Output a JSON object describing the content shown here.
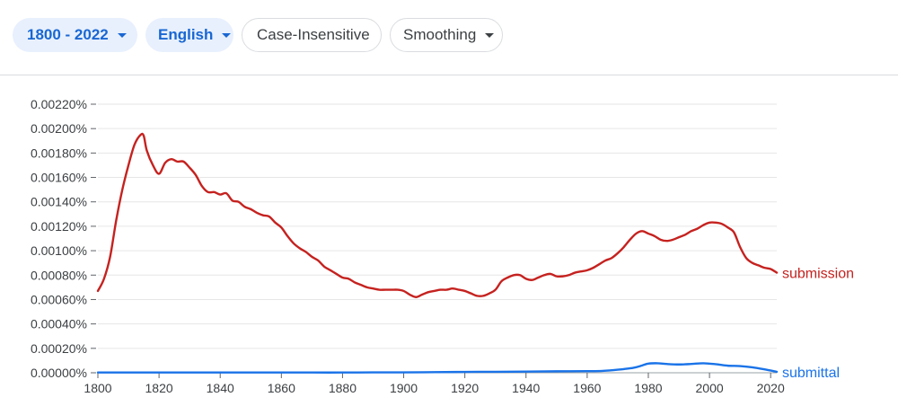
{
  "toolbar": {
    "year_range": "1800 - 2022",
    "corpus": "English",
    "case": "Case-Insensitive",
    "smoothing": "Smoothing"
  },
  "colors": {
    "accent": "#1967d2",
    "chip_active_bg": "#e8f0fe",
    "border": "#dadce0"
  },
  "chart_data": {
    "type": "line",
    "grid": "horizontal",
    "xlim": [
      1800,
      2022
    ],
    "ylim": [
      0,
      0.0022
    ],
    "x_ticks": [
      "1800",
      "1820",
      "1840",
      "1860",
      "1880",
      "1900",
      "1920",
      "1940",
      "1960",
      "1980",
      "2000",
      "2020"
    ],
    "y_ticks": [
      "0.00000%",
      "0.00020%",
      "0.00040%",
      "0.00060%",
      "0.00080%",
      "0.00100%",
      "0.00120%",
      "0.00140%",
      "0.00160%",
      "0.00180%",
      "0.00200%",
      "0.00220%"
    ],
    "series": [
      {
        "name": "submission",
        "color": "#c5221f",
        "x": [
          1800,
          1802,
          1804,
          1806,
          1808,
          1810,
          1812,
          1814,
          1815,
          1816,
          1818,
          1820,
          1822,
          1824,
          1826,
          1828,
          1830,
          1832,
          1834,
          1836,
          1838,
          1840,
          1842,
          1844,
          1846,
          1848,
          1850,
          1852,
          1854,
          1856,
          1858,
          1860,
          1862,
          1864,
          1866,
          1868,
          1870,
          1872,
          1874,
          1876,
          1878,
          1880,
          1882,
          1884,
          1886,
          1888,
          1890,
          1892,
          1894,
          1896,
          1898,
          1900,
          1902,
          1904,
          1906,
          1908,
          1910,
          1912,
          1914,
          1916,
          1918,
          1920,
          1922,
          1924,
          1926,
          1928,
          1930,
          1932,
          1934,
          1936,
          1938,
          1940,
          1942,
          1944,
          1946,
          1948,
          1950,
          1952,
          1954,
          1956,
          1958,
          1960,
          1962,
          1964,
          1966,
          1968,
          1970,
          1972,
          1974,
          1976,
          1978,
          1980,
          1982,
          1984,
          1986,
          1988,
          1990,
          1992,
          1994,
          1996,
          1998,
          2000,
          2002,
          2004,
          2006,
          2008,
          2010,
          2012,
          2014,
          2016,
          2018,
          2020,
          2022
        ],
        "values": [
          0.00067,
          0.00077,
          0.00095,
          0.00125,
          0.0015,
          0.0017,
          0.00187,
          0.00195,
          0.00194,
          0.00182,
          0.0017,
          0.00163,
          0.00172,
          0.00175,
          0.00173,
          0.00173,
          0.00168,
          0.00162,
          0.00153,
          0.00148,
          0.00148,
          0.00146,
          0.00147,
          0.00141,
          0.0014,
          0.00136,
          0.00134,
          0.00131,
          0.00129,
          0.00128,
          0.00123,
          0.00119,
          0.00112,
          0.00106,
          0.00102,
          0.00099,
          0.00095,
          0.00092,
          0.00087,
          0.00084,
          0.00081,
          0.00078,
          0.00077,
          0.00074,
          0.00072,
          0.0007,
          0.00069,
          0.00068,
          0.00068,
          0.00068,
          0.00068,
          0.00067,
          0.00064,
          0.00062,
          0.00064,
          0.00066,
          0.00067,
          0.00068,
          0.00068,
          0.00069,
          0.00068,
          0.00067,
          0.00065,
          0.00063,
          0.00063,
          0.00065,
          0.00068,
          0.00075,
          0.00078,
          0.0008,
          0.0008,
          0.00077,
          0.00076,
          0.00078,
          0.0008,
          0.00081,
          0.00079,
          0.00079,
          0.0008,
          0.00082,
          0.00083,
          0.00084,
          0.00086,
          0.00089,
          0.00092,
          0.00094,
          0.00098,
          0.00103,
          0.00109,
          0.00114,
          0.00116,
          0.00114,
          0.00112,
          0.00109,
          0.00108,
          0.00109,
          0.00111,
          0.00113,
          0.00116,
          0.00118,
          0.00121,
          0.00123,
          0.00123,
          0.00122,
          0.00119,
          0.00115,
          0.00103,
          0.00094,
          0.0009,
          0.00088,
          0.00086,
          0.00085,
          0.00082
        ]
      },
      {
        "name": "submittal",
        "color": "#1a73e8",
        "x": [
          1800,
          1810,
          1820,
          1830,
          1840,
          1850,
          1860,
          1870,
          1880,
          1890,
          1900,
          1910,
          1920,
          1930,
          1940,
          1950,
          1960,
          1965,
          1970,
          1975,
          1978,
          1980,
          1983,
          1986,
          1990,
          1994,
          1998,
          2002,
          2006,
          2010,
          2014,
          2018,
          2022
        ],
        "values": [
          2e-06,
          2e-06,
          2e-06,
          2e-06,
          2e-06,
          2e-06,
          2e-06,
          2e-06,
          2e-06,
          3e-06,
          3e-06,
          5e-06,
          7e-06,
          8e-06,
          1e-05,
          1.2e-05,
          1.3e-05,
          1.5e-05,
          2.5e-05,
          4e-05,
          6e-05,
          7.5e-05,
          7.8e-05,
          7.2e-05,
          6.8e-05,
          7.2e-05,
          7.8e-05,
          7e-05,
          5.8e-05,
          5.5e-05,
          4.5e-05,
          2.8e-05,
          8e-06
        ]
      }
    ]
  }
}
